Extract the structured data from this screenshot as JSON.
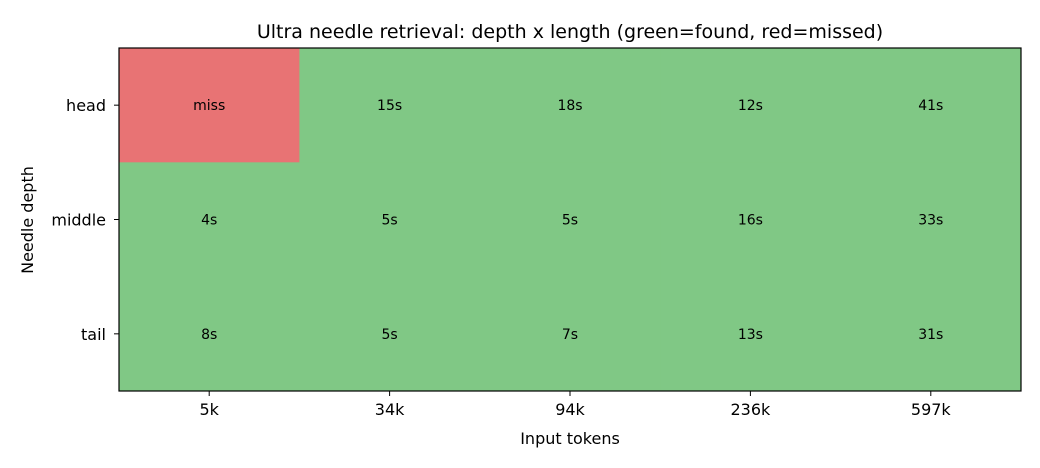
{
  "chart_data": {
    "type": "heatmap",
    "title": "Ultra needle retrieval: depth x length (green=found, red=missed)",
    "xlabel": "Input tokens",
    "ylabel": "Needle depth",
    "x_categories": [
      "5k",
      "34k",
      "94k",
      "236k",
      "597k"
    ],
    "y_categories": [
      "head",
      "middle",
      "tail"
    ],
    "cells": [
      [
        {
          "label": "miss",
          "found": false
        },
        {
          "label": "15s",
          "found": true
        },
        {
          "label": "18s",
          "found": true
        },
        {
          "label": "12s",
          "found": true
        },
        {
          "label": "41s",
          "found": true
        }
      ],
      [
        {
          "label": "4s",
          "found": true
        },
        {
          "label": "5s",
          "found": true
        },
        {
          "label": "5s",
          "found": true
        },
        {
          "label": "16s",
          "found": true
        },
        {
          "label": "33s",
          "found": true
        }
      ],
      [
        {
          "label": "8s",
          "found": true
        },
        {
          "label": "5s",
          "found": true
        },
        {
          "label": "7s",
          "found": true
        },
        {
          "label": "13s",
          "found": true
        },
        {
          "label": "31s",
          "found": true
        }
      ]
    ],
    "colors": {
      "found": "#80c885",
      "missed": "#e87374",
      "frame": "#000000"
    },
    "grid": false
  }
}
